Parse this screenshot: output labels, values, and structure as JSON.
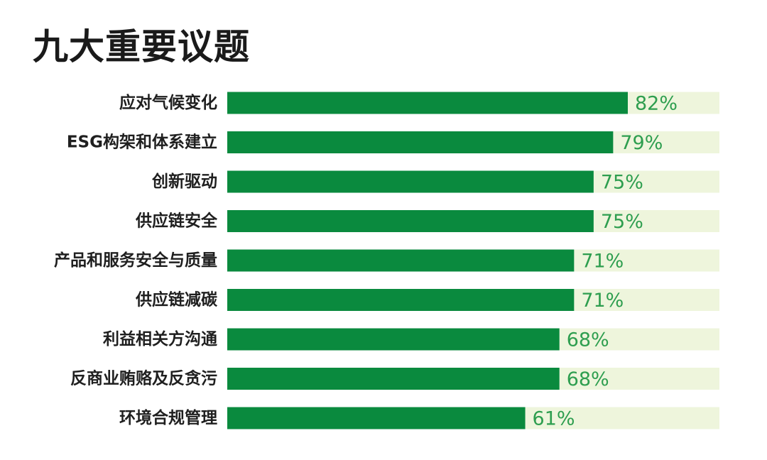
{
  "chart_data": {
    "type": "bar",
    "orientation": "horizontal",
    "title": "九大重要议题",
    "categories": [
      "应对气候变化",
      "ESG构架和体系建立",
      "创新驱动",
      "供应链安全",
      "产品和服务安全与质量",
      "供应链减碳",
      "利益相关方沟通",
      "反商业贿赂及反贪污",
      "环境合规管理"
    ],
    "values": [
      82,
      79,
      75,
      75,
      71,
      71,
      68,
      68,
      61
    ],
    "value_labels": [
      "82%",
      "79%",
      "75%",
      "75%",
      "71%",
      "71%",
      "68%",
      "68%",
      "61%"
    ],
    "xlim": [
      0,
      100
    ],
    "unit": "%",
    "grid": false,
    "legend": "none",
    "colors": {
      "bar": "#0a8a3e",
      "track": "#eef5dc",
      "value_text": "#2e9e4f",
      "label_text": "#1f1f1f",
      "title_text": "#1a1a1a"
    }
  }
}
